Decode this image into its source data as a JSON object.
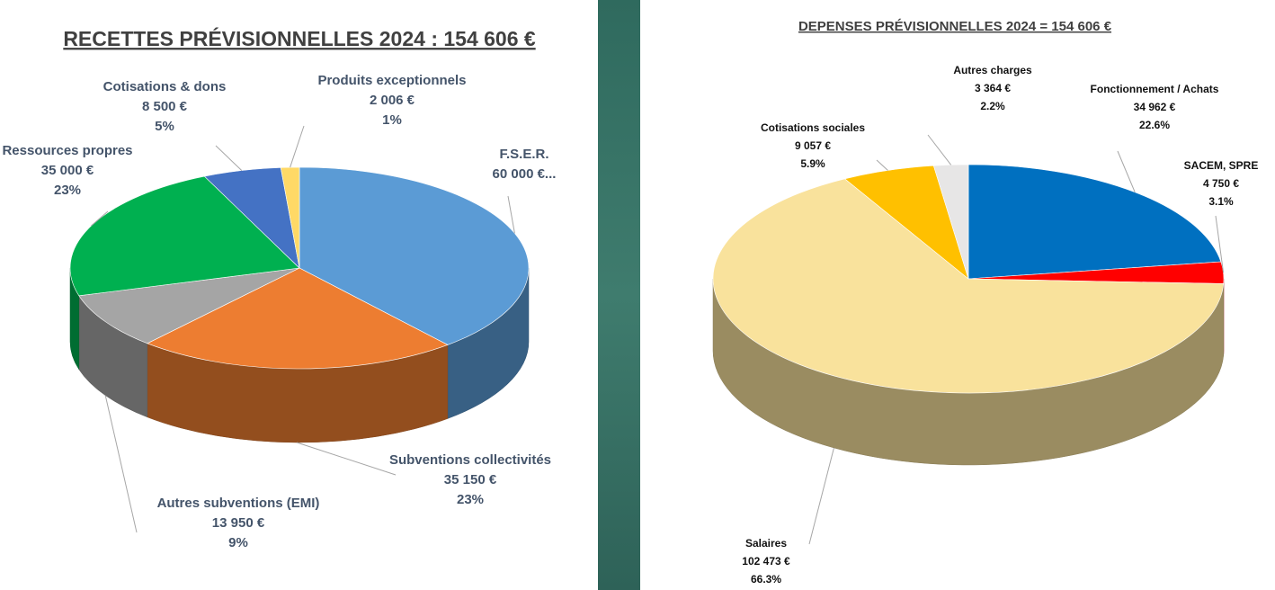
{
  "chart_data": [
    {
      "type": "pie",
      "title": "RECETTES PRÉVISIONNELLES 2024 : 154 606 €",
      "categories": [
        "F.S.E.R.",
        "Subventions collectivités",
        "Autres subventions (EMI)",
        "Ressources propres",
        "Cotisations & dons",
        "Produits exceptionnels"
      ],
      "values": [
        60000,
        35150,
        13950,
        35000,
        8500,
        2006
      ],
      "value_labels": [
        "60 000 €...",
        "35 150 €",
        "13 950 €",
        "35 000 €",
        "8 500 €",
        "2 006 €"
      ],
      "percent_labels": [
        null,
        "23%",
        "9%",
        "23%",
        "5%",
        "1%"
      ],
      "colors": [
        "#5b9bd5",
        "#ed7d31",
        "#a5a5a5",
        "#00b050",
        "#4472c4",
        "#ffd966"
      ]
    },
    {
      "type": "pie",
      "title": "DEPENSES PRÉVISIONNELLES 2024 = 154 606 €",
      "categories": [
        "Fonctionnement / Achats",
        "SACEM, SPRE",
        "Salaires",
        "Cotisations sociales",
        "Autres charges"
      ],
      "values": [
        34962,
        4750,
        102473,
        9057,
        3364
      ],
      "value_labels": [
        "34 962 €",
        "4 750 €",
        "102 473 €",
        "9 057 €",
        "3 364 €"
      ],
      "percent_labels": [
        "22.6%",
        "3.1%",
        "66.3%",
        "5.9%",
        "2.2%"
      ],
      "colors": [
        "#0070c0",
        "#ff0000",
        "#f9e29c",
        "#ffc000",
        "#e7e6e6"
      ]
    }
  ]
}
